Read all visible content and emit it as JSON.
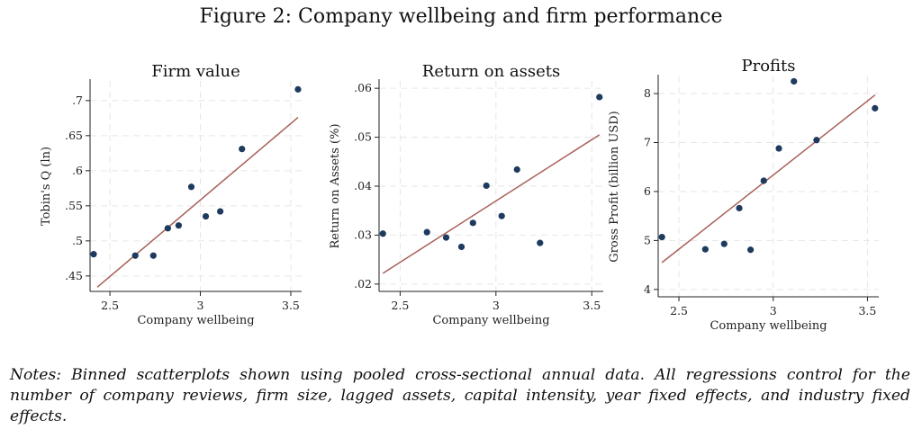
{
  "figure_title": "Figure 2: Company wellbeing and firm performance",
  "notes": "Notes: Binned scatterplots shown using pooled cross-sectional annual data. All regressions control for the number of company reviews, firm size, lagged assets, capital intensity, year fixed effects, and industry fixed effects.",
  "colors": {
    "points": "#1e3a5f",
    "fit_line": "#a86058",
    "grid": "#e6e6e6"
  },
  "chart_data": [
    {
      "type": "scatter",
      "title": "Firm value",
      "xlabel": "Company wellbeing",
      "ylabel": "Tobin's Q (ln)",
      "xlim": [
        2.39,
        3.56
      ],
      "ylim": [
        0.428,
        0.728
      ],
      "xticks": [
        2.5,
        3,
        3.5
      ],
      "xtick_labels": [
        "2.5",
        "3",
        "3.5"
      ],
      "yticks": [
        0.45,
        0.5,
        0.55,
        0.6,
        0.65,
        0.7
      ],
      "ytick_labels": [
        ".45",
        ".5",
        ".55",
        ".6",
        ".65",
        ".7"
      ],
      "grid": true,
      "x": [
        2.41,
        2.64,
        2.74,
        2.82,
        2.88,
        2.95,
        3.03,
        3.11,
        3.23,
        3.54
      ],
      "y": [
        0.481,
        0.479,
        0.479,
        0.518,
        0.522,
        0.577,
        0.535,
        0.542,
        0.631,
        0.716
      ],
      "fit": {
        "x": [
          2.43,
          3.54
        ],
        "y": [
          0.434,
          0.676
        ]
      }
    },
    {
      "type": "scatter",
      "title": "Return on assets",
      "xlabel": "Company wellbeing",
      "ylabel": "Return on Assets (%)",
      "xlim": [
        2.39,
        3.56
      ],
      "ylim": [
        0.0185,
        0.0615
      ],
      "xticks": [
        2.5,
        3,
        3.5
      ],
      "xtick_labels": [
        "2.5",
        "3",
        "3.5"
      ],
      "yticks": [
        0.02,
        0.03,
        0.04,
        0.05,
        0.06
      ],
      "ytick_labels": [
        ".02",
        ".03",
        ".04",
        ".05",
        ".06"
      ],
      "grid": true,
      "x": [
        2.41,
        2.64,
        2.74,
        2.82,
        2.88,
        2.95,
        3.03,
        3.11,
        3.23,
        3.54
      ],
      "y": [
        0.0303,
        0.0306,
        0.0295,
        0.0276,
        0.0325,
        0.0401,
        0.0339,
        0.0434,
        0.0284,
        0.0582
      ],
      "fit": {
        "x": [
          2.41,
          3.54
        ],
        "y": [
          0.0222,
          0.0505
        ]
      }
    },
    {
      "type": "scatter",
      "title": "Profits",
      "xlabel": "Company wellbeing",
      "ylabel": "Gross Profit (billion USD)",
      "xlim": [
        2.39,
        3.56
      ],
      "ylim": [
        3.85,
        8.35
      ],
      "xticks": [
        2.5,
        3,
        3.5
      ],
      "xtick_labels": [
        "2.5",
        "3",
        "3.5"
      ],
      "yticks": [
        4,
        5,
        6,
        7,
        8
      ],
      "ytick_labels": [
        "4",
        "5",
        "6",
        "7",
        "8"
      ],
      "grid": true,
      "x": [
        2.41,
        2.64,
        2.74,
        2.82,
        2.88,
        2.95,
        3.03,
        3.11,
        3.23,
        3.54
      ],
      "y": [
        5.07,
        4.82,
        4.93,
        5.66,
        4.81,
        6.22,
        6.88,
        8.25,
        7.05,
        7.7
      ],
      "fit": {
        "x": [
          2.41,
          3.54
        ],
        "y": [
          4.55,
          7.97
        ]
      }
    }
  ]
}
